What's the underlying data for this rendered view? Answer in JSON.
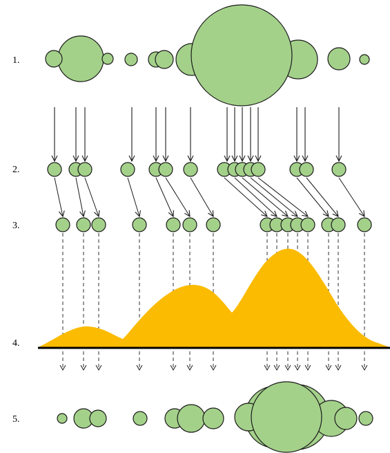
{
  "rows": [
    {
      "label": "1."
    },
    {
      "label": "2."
    },
    {
      "label": "3."
    },
    {
      "label": "4."
    },
    {
      "label": "5."
    }
  ],
  "colors": {
    "circle_fill": "#a4d18a",
    "circle_stroke": "#1a1a1a",
    "density_fill": "#fbbb00",
    "baseline": "#000000",
    "arrow": "#1a1a1a"
  }
}
